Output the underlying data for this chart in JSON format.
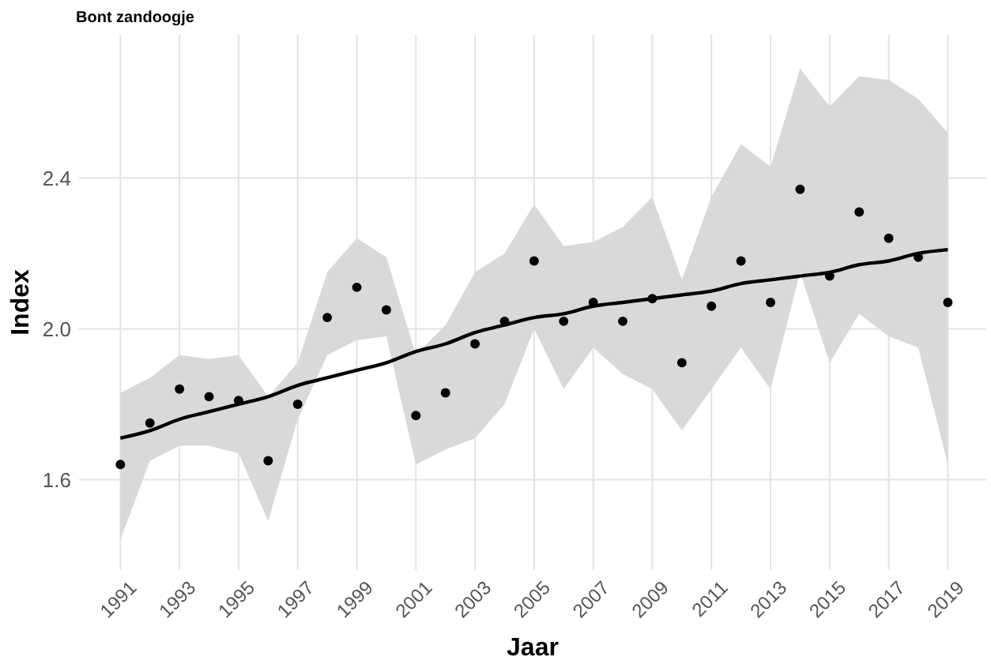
{
  "chart_data": {
    "type": "scatter",
    "title": "Bont zandoogje",
    "xlabel": "Jaar",
    "ylabel": "Index",
    "xlim": [
      1989.6,
      2020.3
    ],
    "ylim": [
      1.36,
      2.78
    ],
    "xticks": [
      1991,
      1993,
      1995,
      1997,
      1999,
      2001,
      2003,
      2005,
      2007,
      2009,
      2011,
      2013,
      2015,
      2017,
      2019
    ],
    "yticks": [
      {
        "value": 1.6,
        "label": "1.6"
      },
      {
        "value": 2.0,
        "label": "2.0"
      },
      {
        "value": 2.4,
        "label": "2.4"
      }
    ],
    "grid": true,
    "series": [
      {
        "type": "line",
        "color": "#000000",
        "x": [
          1991,
          1992,
          1993,
          1994,
          1995,
          1996,
          1997,
          1998,
          1999,
          2000,
          2001,
          2002,
          2003,
          2004,
          2005,
          2006,
          2007,
          2008,
          2009,
          2010,
          2011,
          2012,
          2013,
          2014,
          2015,
          2016,
          2017,
          2018,
          2019
        ],
        "values": [
          1.71,
          1.73,
          1.76,
          1.78,
          1.8,
          1.82,
          1.85,
          1.87,
          1.89,
          1.91,
          1.94,
          1.96,
          1.99,
          2.01,
          2.03,
          2.04,
          2.06,
          2.07,
          2.08,
          2.09,
          2.1,
          2.12,
          2.13,
          2.14,
          2.15,
          2.17,
          2.18,
          2.2,
          2.21
        ],
        "lower": [
          1.44,
          1.65,
          1.69,
          1.69,
          1.67,
          1.49,
          1.76,
          1.93,
          1.97,
          1.98,
          1.64,
          1.68,
          1.71,
          1.8,
          2.0,
          1.84,
          1.95,
          1.88,
          1.84,
          1.73,
          1.84,
          1.95,
          1.84,
          2.15,
          1.91,
          2.04,
          1.98,
          1.95,
          1.64
        ],
        "upper": [
          1.83,
          1.87,
          1.93,
          1.92,
          1.93,
          1.82,
          1.91,
          2.15,
          2.24,
          2.19,
          1.93,
          2.01,
          2.15,
          2.2,
          2.33,
          2.22,
          2.23,
          2.27,
          2.35,
          2.13,
          2.35,
          2.49,
          2.43,
          2.69,
          2.59,
          2.67,
          2.66,
          2.61,
          2.52
        ]
      },
      {
        "color": "#000000",
        "marker": "circle",
        "x": [
          1991,
          1992,
          1993,
          1994,
          1995,
          1996,
          1997,
          1998,
          1999,
          2000,
          2001,
          2002,
          2003,
          2004,
          2005,
          2006,
          2007,
          2008,
          2009,
          2010,
          2011,
          2012,
          2013,
          2014,
          2015,
          2016,
          2017,
          2018,
          2019
        ],
        "values": [
          1.64,
          1.75,
          1.84,
          1.82,
          1.81,
          1.65,
          1.8,
          2.03,
          2.11,
          2.05,
          1.77,
          1.83,
          1.96,
          2.02,
          2.18,
          2.02,
          2.07,
          2.02,
          2.08,
          1.91,
          2.06,
          2.18,
          2.07,
          2.37,
          2.14,
          2.31,
          2.24,
          2.19,
          2.07
        ]
      }
    ]
  }
}
